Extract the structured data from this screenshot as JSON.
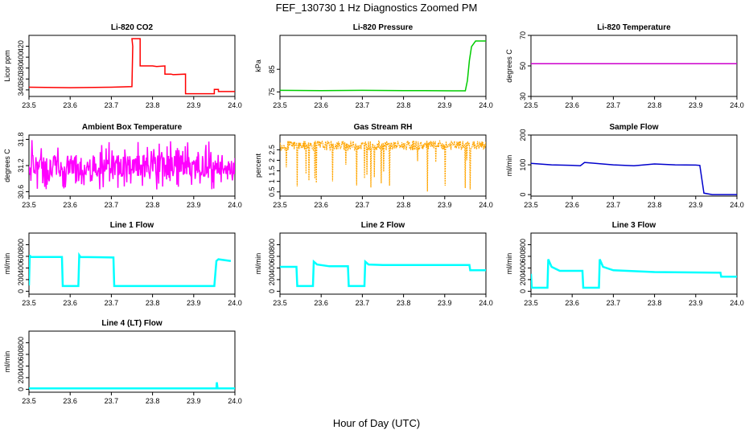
{
  "title": "FEF_130730  1 Hz Diagnostics Zoomed PM",
  "xlabel": "Hour of Day (UTC)",
  "chart_data": [
    {
      "type": "line",
      "title": "Li-820 CO2",
      "ylabel": "Licor ppm",
      "color": "#ff0000",
      "xlim": [
        23.5,
        24.0
      ],
      "xticks": [
        "23.5",
        "23.6",
        "23.7",
        "23.8",
        "23.9",
        "24.0"
      ],
      "ylim": [
        328,
        440
      ],
      "yticks": [
        340,
        360,
        380,
        400,
        420
      ],
      "series": [
        {
          "x": [
            23.5,
            23.6,
            23.7,
            23.75,
            23.752,
            23.75,
            23.758,
            23.77,
            23.77,
            23.8,
            23.81,
            23.83,
            23.83,
            23.845,
            23.85,
            23.85,
            23.88,
            23.88,
            23.95,
            23.95,
            23.96,
            23.96,
            24.0
          ],
          "y": [
            345,
            344,
            345,
            346,
            420,
            434,
            434,
            434,
            384,
            384,
            383,
            384,
            369,
            369,
            368,
            368,
            369,
            333,
            333,
            341,
            341,
            337,
            337
          ]
        }
      ]
    },
    {
      "type": "line",
      "title": "Li-820 Pressure",
      "ylabel": "kPa",
      "color": "#00cc00",
      "xlim": [
        23.5,
        24.0
      ],
      "xticks": [
        "23.5",
        "23.6",
        "23.7",
        "23.8",
        "23.9",
        "24.0"
      ],
      "ylim": [
        73,
        100
      ],
      "yticks": [
        75,
        85
      ],
      "series": [
        {
          "x": [
            23.5,
            23.6,
            23.7,
            23.8,
            23.85,
            23.92,
            23.95,
            23.955,
            23.96,
            23.965,
            23.975,
            24.0
          ],
          "y": [
            75.7,
            75.6,
            75.7,
            75.6,
            75.6,
            75.5,
            75.5,
            80,
            89,
            95,
            97.5,
            97.5
          ]
        }
      ]
    },
    {
      "type": "line",
      "title": "Li-820 Temperature",
      "ylabel": "degrees C",
      "color": "#cc00cc",
      "xlim": [
        23.5,
        24.0
      ],
      "xticks": [
        "23.5",
        "23.6",
        "23.7",
        "23.8",
        "23.9",
        "24.0"
      ],
      "ylim": [
        30,
        70
      ],
      "yticks": [
        30,
        50,
        70
      ],
      "series": [
        {
          "x": [
            23.5,
            24.0
          ],
          "y": [
            51.5,
            51.5
          ]
        }
      ]
    },
    {
      "type": "line",
      "title": "Ambient Box Temperature",
      "ylabel": "degrees C",
      "color": "#ff00ff",
      "xlim": [
        23.5,
        24.0
      ],
      "xticks": [
        "23.5",
        "23.6",
        "23.7",
        "23.8",
        "23.9",
        "24.0"
      ],
      "ylim": [
        30.5,
        31.9
      ],
      "yticks": [
        30.6,
        31.2,
        31.8
      ],
      "series": [
        {
          "x": [
            23.5,
            23.52,
            23.54,
            23.56,
            23.58,
            23.6,
            23.62,
            23.64,
            23.66,
            23.68,
            23.7,
            23.72,
            23.74,
            23.76,
            23.78,
            23.8,
            23.82,
            23.84,
            23.86,
            23.88,
            23.9,
            23.92,
            23.94,
            23.96,
            23.98,
            24.0
          ],
          "y": [
            31.2,
            31.35,
            31.1,
            31.3,
            31.15,
            31.25,
            31.05,
            31.3,
            31.2,
            31.1,
            31.3,
            31.15,
            31.25,
            31.2,
            31.1,
            31.3,
            31.2,
            31.15,
            31.3,
            31.25,
            31.1,
            31.3,
            31.2,
            31.35,
            31.25,
            31.3
          ]
        }
      ]
    },
    {
      "type": "line",
      "title": "Gas Stream RH",
      "ylabel": "percent",
      "color": "#ffa500",
      "xlim": [
        23.5,
        24.0
      ],
      "xticks": [
        "23.5",
        "23.6",
        "23.7",
        "23.8",
        "23.9",
        "24.0"
      ],
      "ylim": [
        0.3,
        3.2
      ],
      "yticks": [
        0.5,
        1.0,
        1.5,
        2.0,
        2.5
      ],
      "series": [
        {
          "x": [
            23.5,
            23.52,
            23.535,
            23.55,
            23.6,
            23.61,
            23.62,
            23.65,
            23.67,
            23.68,
            23.7,
            23.72,
            23.74,
            23.76,
            23.8,
            23.81,
            23.82,
            23.84,
            23.85,
            23.86,
            23.9,
            23.95,
            24.0
          ],
          "y": [
            2.7,
            2.6,
            0.7,
            2.7,
            2.6,
            0.5,
            2.7,
            2.6,
            2.7,
            0.6,
            2.7,
            2.6,
            2.5,
            2.7,
            2.6,
            1.3,
            2.7,
            0.9,
            0.4,
            2.7,
            2.6,
            2.7,
            2.7
          ]
        }
      ]
    },
    {
      "type": "line",
      "title": "Sample Flow",
      "ylabel": "ml/min",
      "color": "#0000cc",
      "xlim": [
        23.5,
        24.0
      ],
      "xticks": [
        "23.5",
        "23.6",
        "23.7",
        "23.8",
        "23.9",
        "24.0"
      ],
      "ylim": [
        -5,
        200
      ],
      "yticks": [
        0,
        100,
        200
      ],
      "series": [
        {
          "x": [
            23.5,
            23.55,
            23.6,
            23.62,
            23.63,
            23.7,
            23.75,
            23.8,
            23.85,
            23.9,
            23.91,
            23.92,
            23.94,
            24.0
          ],
          "y": [
            105,
            100,
            98,
            97,
            108,
            100,
            97,
            103,
            100,
            99,
            98,
            5,
            0,
            0
          ]
        }
      ]
    },
    {
      "type": "line",
      "title": "Line 1 Flow",
      "ylabel": "ml/min",
      "color": "#00ffff",
      "xlim": [
        23.5,
        24.0
      ],
      "xticks": [
        "23.5",
        "23.6",
        "23.7",
        "23.8",
        "23.9",
        "24.0"
      ],
      "ylim": [
        -50,
        1000
      ],
      "yticks": [
        0,
        200,
        400,
        600,
        800
      ],
      "series": [
        {
          "x": [
            23.5,
            23.502,
            23.504,
            23.58,
            23.582,
            23.62,
            23.622,
            23.625,
            23.705,
            23.707,
            23.95,
            23.955,
            23.96,
            23.99
          ],
          "y": [
            100,
            620,
            590,
            590,
            90,
            90,
            620,
            590,
            580,
            90,
            90,
            520,
            550,
            520
          ]
        }
      ]
    },
    {
      "type": "line",
      "title": "Line 2 Flow",
      "ylabel": "ml/min",
      "color": "#00ffff",
      "xlim": [
        23.5,
        24.0
      ],
      "xticks": [
        "23.5",
        "23.6",
        "23.7",
        "23.8",
        "23.9",
        "24.0"
      ],
      "ylim": [
        -50,
        1000
      ],
      "yticks": [
        0,
        200,
        400,
        600,
        800
      ],
      "series": [
        {
          "x": [
            23.5,
            23.54,
            23.542,
            23.58,
            23.582,
            23.59,
            23.62,
            23.665,
            23.667,
            23.705,
            23.707,
            23.715,
            23.75,
            23.96,
            23.962,
            24.0
          ],
          "y": [
            420,
            420,
            90,
            90,
            510,
            460,
            430,
            430,
            90,
            90,
            510,
            460,
            450,
            450,
            360,
            360
          ]
        }
      ]
    },
    {
      "type": "line",
      "title": "Line 3 Flow",
      "ylabel": "ml/min",
      "color": "#00ffff",
      "xlim": [
        23.5,
        24.0
      ],
      "xticks": [
        "23.5",
        "23.6",
        "23.7",
        "23.8",
        "23.9",
        "24.0"
      ],
      "ylim": [
        -50,
        1000
      ],
      "yticks": [
        0,
        200,
        400,
        600,
        800
      ],
      "series": [
        {
          "x": [
            23.5,
            23.502,
            23.504,
            23.54,
            23.542,
            23.55,
            23.57,
            23.625,
            23.627,
            23.635,
            23.665,
            23.667,
            23.675,
            23.7,
            23.8,
            23.95,
            23.96,
            23.962,
            24.0
          ],
          "y": [
            300,
            60,
            60,
            60,
            550,
            420,
            350,
            350,
            60,
            60,
            60,
            550,
            420,
            360,
            330,
            320,
            320,
            250,
            250
          ]
        }
      ]
    },
    {
      "type": "line",
      "title": "Line 4 (LT) Flow",
      "ylabel": "ml/min",
      "color": "#00ffff",
      "xlim": [
        23.5,
        24.0
      ],
      "xticks": [
        "23.5",
        "23.6",
        "23.7",
        "23.8",
        "23.9",
        "24.0"
      ],
      "ylim": [
        -50,
        1000
      ],
      "yticks": [
        0,
        200,
        400,
        600,
        800
      ],
      "series": [
        {
          "x": [
            23.5,
            23.955,
            23.956,
            23.958,
            23.96,
            24.0
          ],
          "y": [
            15,
            15,
            120,
            15,
            15,
            15
          ]
        }
      ]
    }
  ]
}
